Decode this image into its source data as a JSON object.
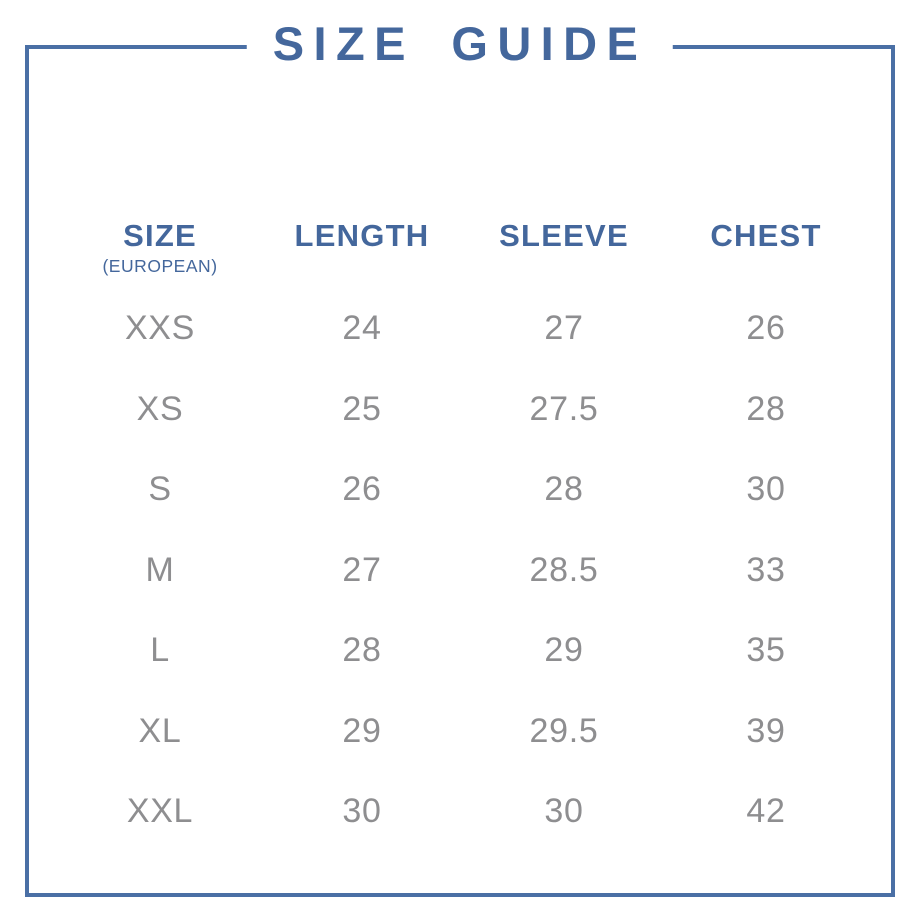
{
  "page": {
    "title": "SIZE GUIDE"
  },
  "colors": {
    "accent_blue": "#44679c",
    "border_blue": "#4a6fa5",
    "data_gray": "#8e8e90",
    "background": "#ffffff"
  },
  "table": {
    "columns": [
      {
        "label": "SIZE",
        "sublabel": "(EUROPEAN)"
      },
      {
        "label": "LENGTH"
      },
      {
        "label": "SLEEVE"
      },
      {
        "label": "CHEST"
      }
    ],
    "rows": [
      {
        "size": "XXS",
        "length": "24",
        "sleeve": "27",
        "chest": "26"
      },
      {
        "size": "XS",
        "length": "25",
        "sleeve": "27.5",
        "chest": "28"
      },
      {
        "size": "S",
        "length": "26",
        "sleeve": "28",
        "chest": "30"
      },
      {
        "size": "M",
        "length": "27",
        "sleeve": "28.5",
        "chest": "33"
      },
      {
        "size": "L",
        "length": "28",
        "sleeve": "29",
        "chest": "35"
      },
      {
        "size": "XL",
        "length": "29",
        "sleeve": "29.5",
        "chest": "39"
      },
      {
        "size": "XXL",
        "length": "30",
        "sleeve": "30",
        "chest": "42"
      }
    ]
  }
}
